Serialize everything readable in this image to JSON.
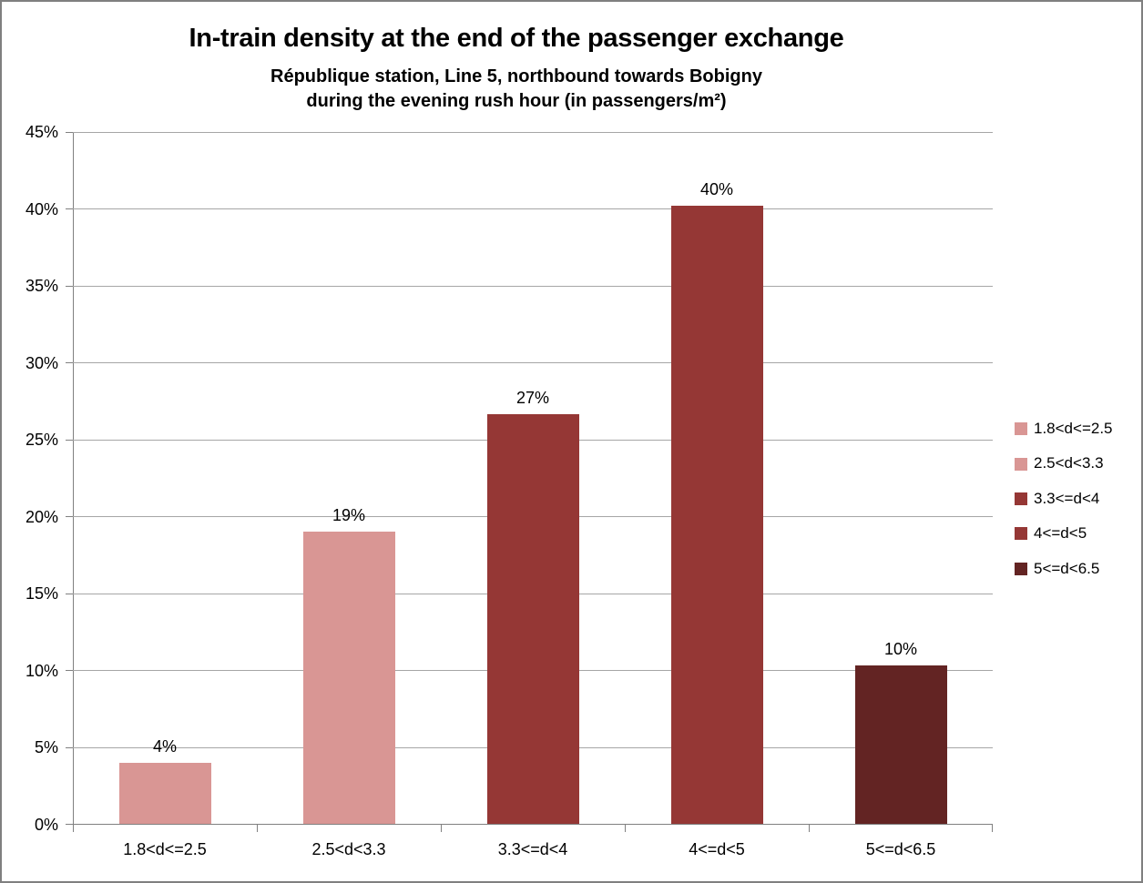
{
  "header": {
    "title": "In-train density at the end of the passenger exchange",
    "subtitle_line1": "République station, Line 5, northbound towards Bobigny",
    "subtitle_line2": "during the evening rush hour (in passengers/m²)"
  },
  "chart_data": {
    "type": "bar",
    "title": "In-train density at the end of the passenger exchange",
    "subtitle": "République station, Line 5, northbound towards Bobigny during the evening rush hour (in passengers/m²)",
    "categories": [
      "1.8<d<=2.5",
      "2.5<d<3.3",
      "3.3<=d<4",
      "4<=d<5",
      "5<=d<6.5"
    ],
    "values": [
      4,
      19,
      27,
      40,
      10
    ],
    "values_precise": [
      3.95,
      19.0,
      26.6,
      40.15,
      10.3
    ],
    "data_labels": [
      "4%",
      "19%",
      "27%",
      "40%",
      "10%"
    ],
    "bar_colors": [
      "#D99694",
      "#D99694",
      "#953735",
      "#953735",
      "#632423"
    ],
    "xlabel": "",
    "ylabel": "",
    "ylim": [
      0,
      45
    ],
    "ytick_step": 5,
    "ytick_labels": [
      "0%",
      "5%",
      "10%",
      "15%",
      "20%",
      "25%",
      "30%",
      "35%",
      "40%",
      "45%"
    ],
    "grid": true,
    "legend_position": "right",
    "legend": [
      {
        "label": "1.8<d<=2.5",
        "color": "#D99694"
      },
      {
        "label": "2.5<d<3.3",
        "color": "#D99694"
      },
      {
        "label": "3.3<=d<4",
        "color": "#953735"
      },
      {
        "label": "4<=d<5",
        "color": "#953735"
      },
      {
        "label": "5<=d<6.5",
        "color": "#632423"
      }
    ],
    "colors": {
      "gridline": "#A6A6A6",
      "axis": "#808080",
      "text": "#000000",
      "background": "#FFFFFF"
    }
  }
}
